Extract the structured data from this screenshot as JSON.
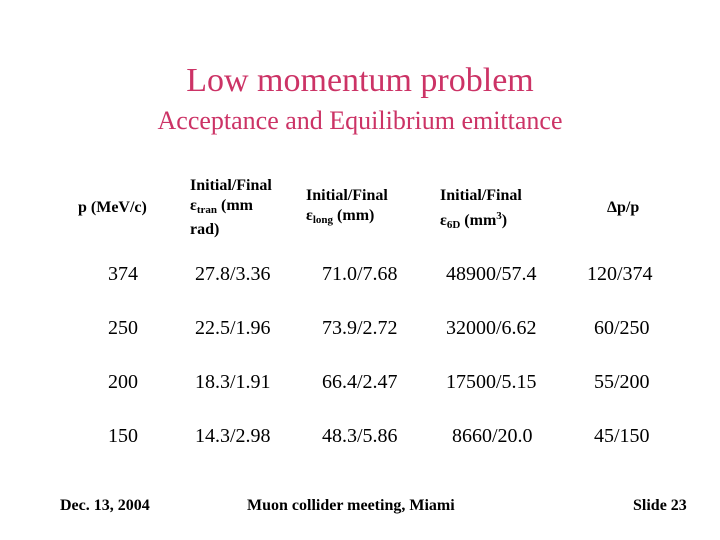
{
  "slide": {
    "title": "Low momentum problem",
    "subtitle": "Acceptance and Equilibrium emittance"
  },
  "table": {
    "headers": {
      "p": "p (MeV/c)",
      "tran_line1": "Initial/Final",
      "tran_symbol": "ε",
      "tran_sub": "tran",
      "tran_unit": " (mm",
      "tran_line3": "rad)",
      "long_line1": "Initial/Final",
      "long_symbol": "ε",
      "long_sub": "long",
      "long_unit": " (mm)",
      "six_line1": "Initial/Final",
      "six_symbol": "ε",
      "six_sub": "6D",
      "six_unit": " (mm",
      "six_sup": "3",
      "six_close": ")",
      "dp_symbol": "Δ",
      "dp_rest": "p/p"
    },
    "rows": [
      [
        "374",
        "27.8/3.36",
        "71.0/7.68",
        "48900/57.4",
        "120/374"
      ],
      [
        "250",
        "22.5/1.96",
        "73.9/2.72",
        "32000/6.62",
        "60/250"
      ],
      [
        "200",
        "18.3/1.91",
        "66.4/2.47",
        "17500/5.15",
        "55/200"
      ],
      [
        "150",
        "14.3/2.98",
        "48.3/5.86",
        "8660/20.0",
        "45/150"
      ]
    ]
  },
  "footer": {
    "date": "Dec. 13, 2004",
    "meeting": "Muon collider meeting, Miami",
    "slide_number": "Slide 23"
  }
}
